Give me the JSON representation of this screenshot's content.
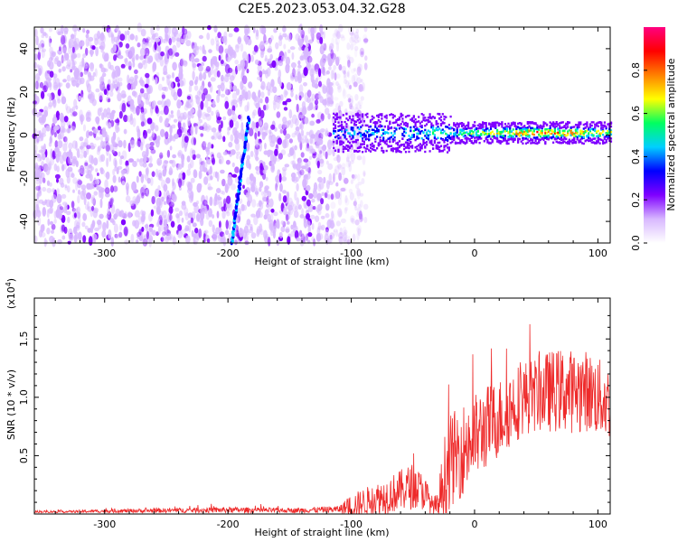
{
  "title": "C2E5.2023.053.04.32.G28",
  "colorbar": {
    "label": "Normalized spectral amplitude",
    "ticks": [
      0.0,
      0.2,
      0.4,
      0.6,
      0.8
    ],
    "tick_labels": [
      "0.0",
      "0.2",
      "0.4",
      "0.6",
      "0.8"
    ],
    "range": [
      0,
      1
    ]
  },
  "chart_data": [
    {
      "type": "heatmap",
      "title": "C2E5.2023.053.04.32.G28",
      "xlabel": "Height of straight line (km)",
      "ylabel": "Frequency (Hz)",
      "xlim": [
        -357,
        110
      ],
      "ylim": [
        -50,
        50
      ],
      "x_ticks": [
        -300,
        -200,
        -100,
        0,
        100
      ],
      "x_tick_labels": [
        "-300",
        "-200",
        "-100",
        "0",
        "100"
      ],
      "y_ticks": [
        -40,
        -20,
        0,
        20,
        40
      ],
      "y_tick_labels": [
        "-40",
        "-20",
        "0",
        "20",
        "40"
      ],
      "noise_region_km": [
        -357,
        -100
      ],
      "signal_start_km": -115,
      "signal_frequency_hz": 1,
      "signal_peak_amplitude_by_height": [
        {
          "x": -110,
          "amp": 0.45
        },
        {
          "x": -80,
          "amp": 0.5
        },
        {
          "x": -40,
          "amp": 0.55
        },
        {
          "x": -10,
          "amp": 0.65
        },
        {
          "x": 20,
          "amp": 0.85
        },
        {
          "x": 60,
          "amp": 0.95
        },
        {
          "x": 110,
          "amp": 0.75
        }
      ],
      "diagonal_streak": {
        "from": {
          "x": -197,
          "y": -50
        },
        "to": {
          "x": -183,
          "y": 8
        }
      },
      "colormap": [
        "#ffffff",
        "#d8b8ff",
        "#7f00ff",
        "#0000ff",
        "#00cfff",
        "#00ff60",
        "#ffff00",
        "#ff8000",
        "#ff0000",
        "#ff0080"
      ]
    },
    {
      "type": "line",
      "xlabel": "Height of straight line (km)",
      "ylabel": "SNR (10 * v/v)",
      "y_scale_label": "(x10",
      "y_scale_exponent": "4",
      "y_scale_close": ")",
      "xlim": [
        -357,
        110
      ],
      "ylim": [
        0,
        1.85
      ],
      "x_ticks": [
        -300,
        -200,
        -100,
        0,
        100
      ],
      "x_tick_labels": [
        "-300",
        "-200",
        "-100",
        "0",
        "100"
      ],
      "y_ticks": [
        0.5,
        1.0,
        1.5
      ],
      "y_tick_labels": [
        "0.5",
        "1.0",
        "1.5"
      ],
      "series": [
        {
          "name": "SNR",
          "color": "#ee2a2a",
          "x": [
            -357,
            -330,
            -300,
            -250,
            -200,
            -150,
            -110,
            -100,
            -90,
            -80,
            -70,
            -60,
            -50,
            -40,
            -35,
            -30,
            -25,
            -20,
            -10,
            0,
            10,
            20,
            30,
            40,
            50,
            60,
            70,
            80,
            90,
            100,
            110
          ],
          "y": [
            0.02,
            0.02,
            0.025,
            0.03,
            0.035,
            0.03,
            0.04,
            0.07,
            0.1,
            0.13,
            0.16,
            0.2,
            0.24,
            0.18,
            0.08,
            0.05,
            0.3,
            0.45,
            0.55,
            0.65,
            0.75,
            0.82,
            0.92,
            1.0,
            1.02,
            1.05,
            1.06,
            1.05,
            1.06,
            1.0,
            0.95
          ],
          "noise_amplitude": [
            0.01,
            0.01,
            0.015,
            0.02,
            0.025,
            0.02,
            0.03,
            0.1,
            0.12,
            0.14,
            0.16,
            0.18,
            0.2,
            0.15,
            0.08,
            0.12,
            0.35,
            0.4,
            0.4,
            0.38,
            0.36,
            0.34,
            0.34,
            0.32,
            0.32,
            0.35,
            0.36,
            0.36,
            0.35,
            0.34,
            0.32
          ]
        }
      ]
    }
  ]
}
